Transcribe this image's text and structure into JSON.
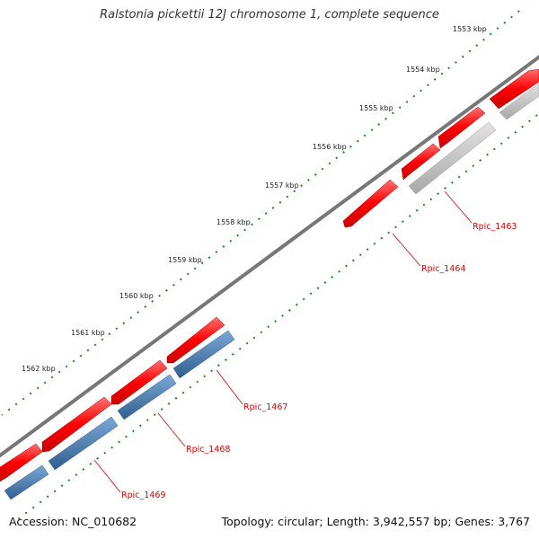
{
  "title": "Ralstonia pickettii 12J chromosome 1, complete sequence",
  "accession": "Accession: NC_010682",
  "summary": "Topology: circular; Length: 3,942,557 bp; Genes: 3,767",
  "kbp_labels": [
    "1553 kbp",
    "1554 kbp",
    "1555 kbp",
    "1556 kbp",
    "1557 kbp",
    "1558 kbp",
    "1559 kbp",
    "1560 kbp",
    "1561 kbp",
    "1562 kbp"
  ],
  "gene_labels": [
    "Rpic_1463",
    "Rpic_1464",
    "Rpic_1467",
    "Rpic_1468",
    "Rpic_1469"
  ],
  "colors": {
    "backbone": "#7a7a7a",
    "forward_gene": "#ff0000",
    "cds_blue": "#4a7fb5",
    "cds_gray": "#c4c4c4",
    "ruler": "#1a8a1a",
    "label_red": "#e00000"
  }
}
